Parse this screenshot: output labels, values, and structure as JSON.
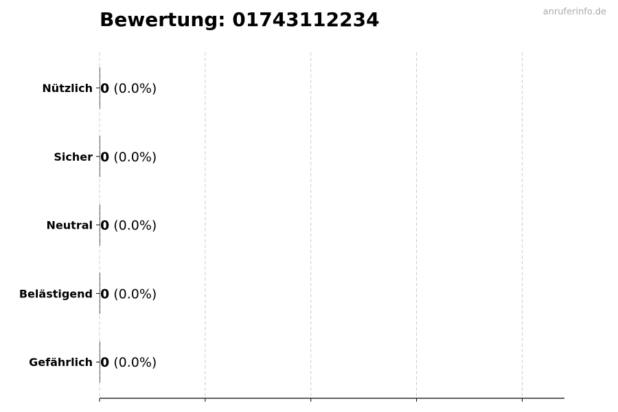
{
  "watermark": "anruferinfo.de",
  "chart_data": {
    "type": "bar",
    "orientation": "horizontal",
    "title": "Bewertung: 01743112234",
    "xlabel": "",
    "ylabel": "",
    "categories": [
      "Nützlich",
      "Sicher",
      "Neutral",
      "Belästigend",
      "Gefährlich"
    ],
    "values": [
      0,
      0,
      0,
      0,
      0
    ],
    "percentages": [
      0.0,
      0.0,
      0.0,
      0.0,
      0.0
    ],
    "data_labels": [
      {
        "count": "0",
        "percent": "(0.0%)"
      },
      {
        "count": "0",
        "percent": "(0.0%)"
      },
      {
        "count": "0",
        "percent": "(0.0%)"
      },
      {
        "count": "0",
        "percent": "(0.0%)"
      },
      {
        "count": "0",
        "percent": "(0.0%)"
      }
    ],
    "xlim": [
      0,
      1.1
    ],
    "xticks": [
      0,
      0.25,
      0.5,
      0.75,
      1.0
    ],
    "x_tick_labels_shown": false,
    "grid": "vertical dashed",
    "bar_color": "#333333",
    "grid_color": "#cccccc"
  }
}
